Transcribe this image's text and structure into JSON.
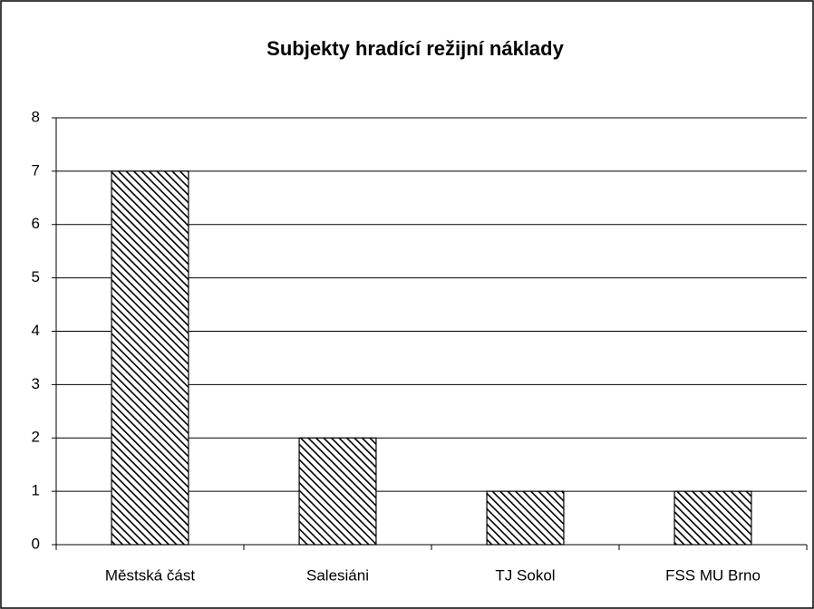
{
  "chart_data": {
    "type": "bar",
    "title": "Subjekty hradící režijní náklady",
    "categories": [
      "Městská část",
      "Salesiáni",
      "TJ Sokol",
      "FSS MU Brno"
    ],
    "values": [
      7,
      2,
      1,
      1
    ],
    "color": "#000000",
    "ylim": [
      0,
      8
    ],
    "yticks": [
      0,
      1,
      2,
      3,
      4,
      5,
      6,
      7,
      8
    ],
    "grid": true
  }
}
